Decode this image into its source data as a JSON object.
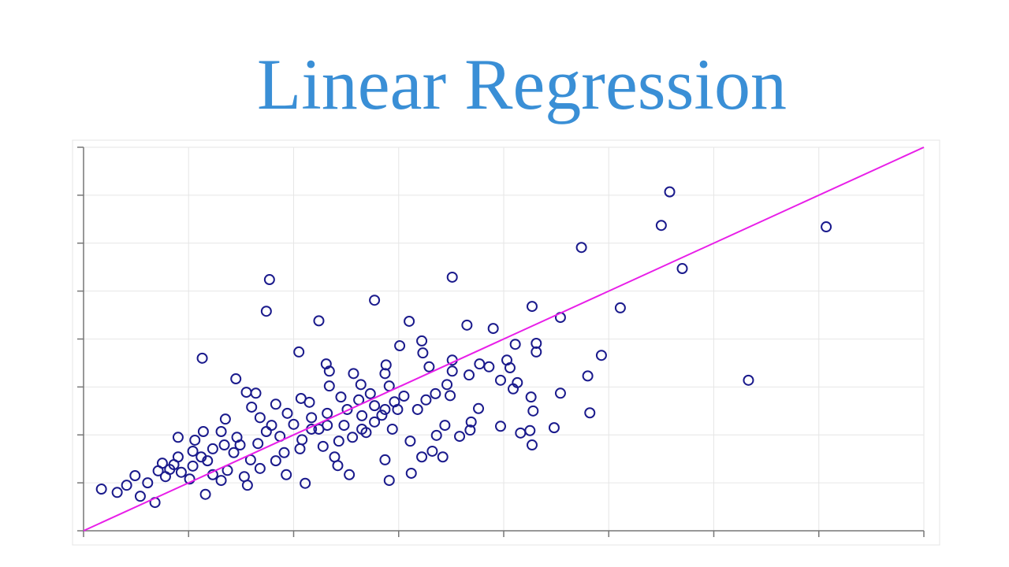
{
  "chart_data": {
    "type": "scatter",
    "title": "Linear Regression",
    "xlim": [
      0,
      8
    ],
    "ylim": [
      0,
      8
    ],
    "xticks": [
      0,
      1,
      2,
      3,
      4,
      5,
      6,
      7,
      8
    ],
    "yticks": [
      0,
      1,
      2,
      3,
      4,
      5,
      6,
      7,
      8
    ],
    "grid": true,
    "series": [
      {
        "color": "#1a1a8c",
        "x": [
          5.58,
          5.5,
          7.07,
          4.74,
          5.7,
          1.77,
          3.51,
          2.77,
          1.74,
          2.24,
          3.1,
          5.11,
          4.27,
          4.54,
          3.65,
          3.9,
          6.33,
          4.93,
          4.8,
          4.82,
          4.54,
          4.48,
          4.27,
          4.25,
          4.28,
          4.26,
          4.31,
          4.31,
          4.11,
          4.03,
          4.06,
          4.13,
          4.09,
          3.97,
          3.97,
          4.16,
          3.86,
          3.77,
          3.76,
          3.69,
          3.68,
          3.58,
          3.67,
          3.51,
          3.51,
          3.22,
          3.23,
          3.29,
          3.01,
          3.49,
          3.44,
          3.36,
          3.42,
          3.32,
          3.22,
          3.12,
          2.91,
          2.87,
          2.53,
          2.42,
          2.11,
          1.13,
          2.05,
          1.45,
          1.16,
          0.68,
          0.17,
          0.32,
          0.54,
          0.49,
          0.61,
          0.9,
          1.14,
          1.56,
          1.93,
          2.31,
          2.34,
          2.57,
          2.88,
          2.87,
          2.91,
          2.64,
          2.45,
          2.34,
          2.15,
          2.07,
          1.83,
          1.64,
          1.55,
          1.6,
          1.35,
          1.31,
          1.06,
          1.04,
          0.9,
          0.75,
          0.82,
          0.93,
          1.04,
          1.18,
          1.23,
          1.37,
          1.43,
          1.49,
          1.59,
          1.66,
          1.74,
          1.87,
          1.91,
          2.0,
          2.08,
          2.17,
          2.24,
          2.28,
          2.39,
          2.48,
          2.56,
          2.65,
          2.69,
          2.77,
          2.84,
          2.94,
          2.99,
          3.05,
          3.11,
          3.18,
          3.26,
          3.35,
          3.46,
          2.96,
          2.87,
          1.23,
          1.12,
          0.86,
          0.71,
          1.34,
          1.46,
          1.68,
          1.79,
          1.94,
          2.17,
          2.32,
          2.51,
          2.62,
          2.73,
          2.77,
          2.65,
          2.43,
          2.32,
          2.06,
          1.83,
          1.68,
          1.53,
          1.31,
          1.01,
          0.78,
          0.41
        ],
        "y": [
          7.07,
          6.37,
          6.34,
          5.91,
          5.47,
          5.24,
          5.29,
          4.81,
          4.58,
          4.38,
          4.37,
          4.65,
          4.68,
          4.45,
          4.29,
          4.22,
          3.14,
          3.66,
          3.23,
          2.46,
          2.87,
          2.15,
          1.79,
          2.09,
          2.5,
          2.79,
          3.73,
          3.91,
          3.89,
          3.56,
          3.4,
          3.09,
          2.96,
          3.14,
          2.18,
          2.04,
          3.42,
          3.48,
          2.55,
          2.27,
          2.1,
          1.97,
          3.25,
          3.56,
          3.33,
          3.96,
          3.71,
          3.42,
          3.86,
          2.82,
          2.2,
          1.99,
          1.54,
          1.66,
          1.54,
          1.2,
          1.05,
          1.48,
          1.17,
          1.36,
          0.99,
          3.6,
          3.73,
          3.17,
          0.76,
          0.59,
          0.87,
          0.8,
          0.72,
          1.15,
          1.0,
          1.95,
          2.07,
          0.95,
          1.17,
          3.48,
          3.33,
          3.28,
          3.46,
          3.28,
          3.02,
          3.05,
          2.79,
          3.02,
          2.68,
          2.76,
          2.64,
          2.87,
          2.89,
          2.58,
          2.33,
          2.07,
          1.89,
          1.66,
          1.54,
          1.41,
          1.28,
          1.22,
          1.35,
          1.46,
          1.17,
          1.26,
          1.63,
          1.79,
          1.48,
          1.82,
          2.07,
          1.97,
          1.63,
          2.22,
          1.9,
          2.36,
          2.12,
          1.76,
          1.54,
          2.2,
          1.95,
          2.4,
          2.05,
          2.27,
          2.41,
          2.12,
          2.53,
          2.81,
          1.87,
          2.53,
          2.73,
          2.86,
          3.05,
          2.69,
          2.53,
          1.71,
          1.54,
          1.38,
          1.25,
          1.79,
          1.95,
          2.36,
          2.2,
          2.45,
          2.12,
          2.45,
          2.53,
          2.73,
          2.86,
          2.61,
          2.12,
          1.87,
          2.2,
          1.71,
          1.46,
          1.3,
          1.13,
          1.05,
          1.08,
          1.13,
          0.95
        ]
      }
    ],
    "lines": [
      {
        "color": "#e81ee8",
        "x": [
          0,
          8
        ],
        "y": [
          0,
          8
        ]
      }
    ]
  }
}
